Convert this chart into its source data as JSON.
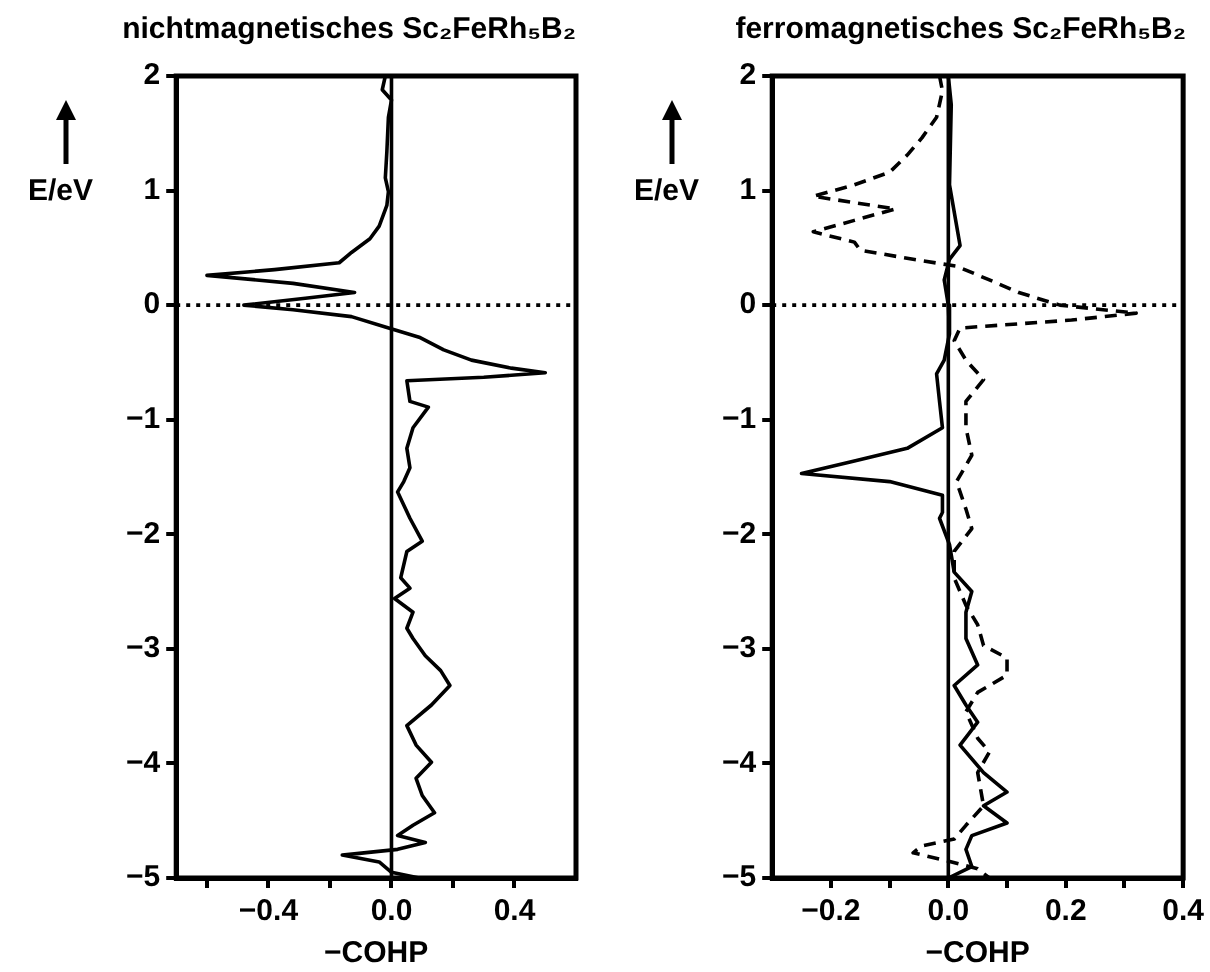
{
  "chart_data": [
    {
      "type": "line",
      "title": "nichtmagnetisches Sc₂FeRh₅B₂",
      "xlabel": "−COHP",
      "ylabel": "E/eV",
      "xlim": [
        -0.7,
        0.6
      ],
      "xticks": [
        {
          "value": -0.6,
          "label": null
        },
        {
          "value": -0.4,
          "label": "−0.4"
        },
        {
          "value": -0.2,
          "label": null
        },
        {
          "value": 0,
          "label": "0.0"
        },
        {
          "value": 0.2,
          "label": null
        },
        {
          "value": 0.4,
          "label": "0.4"
        }
      ],
      "ylim": [
        -5,
        2
      ],
      "yticks": [
        {
          "value": -5,
          "label": "−5"
        },
        {
          "value": -4,
          "label": "−4"
        },
        {
          "value": -3,
          "label": "−3"
        },
        {
          "value": -2,
          "label": "−2"
        },
        {
          "value": -1,
          "label": "−1"
        },
        0,
        1,
        2
      ],
      "grid": false,
      "legend": false,
      "marker": "none",
      "ref_lines": [
        {
          "axis": "y",
          "value": 0,
          "line_style": "dotted",
          "color": "#000000"
        },
        {
          "axis": "x",
          "value": 0,
          "line_style": "solid",
          "color": "#000000"
        }
      ],
      "series": [
        {
          "color": "#000000",
          "line_style": "solid",
          "x": [
            -0.02,
            -0.03,
            0.0,
            -0.01,
            -0.015,
            -0.02,
            -0.01,
            -0.015,
            -0.04,
            -0.07,
            -0.13,
            -0.17,
            -0.38,
            -0.6,
            -0.32,
            -0.12,
            -0.28,
            -0.48,
            -0.32,
            -0.13,
            -0.02,
            0.09,
            0.17,
            0.26,
            0.39,
            0.5,
            0.3,
            0.05,
            0.06,
            0.12,
            0.07,
            0.05,
            0.06,
            0.04,
            0.02,
            0.06,
            0.1,
            0.05,
            0.03,
            0.06,
            0.01,
            0.07,
            0.05,
            0.07,
            0.11,
            0.16,
            0.19,
            0.13,
            0.05,
            0.08,
            0.13,
            0.08,
            0.1,
            0.14,
            0.07,
            0.02,
            0.11,
            0.02,
            -0.16,
            -0.04,
            0.0,
            0.09
          ],
          "values": [
            2.0,
            1.88,
            1.79,
            1.64,
            1.34,
            1.11,
            0.99,
            0.87,
            0.69,
            0.58,
            0.46,
            0.37,
            0.31,
            0.26,
            0.19,
            0.11,
            0.06,
            0.0,
            -0.04,
            -0.1,
            -0.19,
            -0.28,
            -0.39,
            -0.48,
            -0.55,
            -0.59,
            -0.63,
            -0.66,
            -0.84,
            -0.89,
            -1.07,
            -1.25,
            -1.42,
            -1.54,
            -1.63,
            -1.86,
            -2.06,
            -2.15,
            -2.38,
            -2.47,
            -2.56,
            -2.68,
            -2.82,
            -2.91,
            -3.06,
            -3.19,
            -3.32,
            -3.49,
            -3.67,
            -3.84,
            -3.99,
            -4.13,
            -4.28,
            -4.43,
            -4.54,
            -4.63,
            -4.69,
            -4.75,
            -4.8,
            -4.86,
            -4.95,
            -5.0
          ]
        }
      ]
    },
    {
      "type": "line",
      "title": "ferromagnetisches Sc₂FeRh₅B₂",
      "xlabel": "−COHP",
      "ylabel": "E/eV",
      "xlim": [
        -0.3,
        0.4
      ],
      "xticks": [
        {
          "value": -0.2,
          "label": "−0.2"
        },
        {
          "value": -0.1,
          "label": null
        },
        {
          "value": 0,
          "label": "0.0"
        },
        {
          "value": 0.1,
          "label": null
        },
        0.2,
        {
          "value": 0.3,
          "label": null
        },
        0.4
      ],
      "ylim": [
        -5,
        2
      ],
      "yticks": [
        {
          "value": -5,
          "label": "−5"
        },
        {
          "value": -4,
          "label": "−4"
        },
        {
          "value": -3,
          "label": "−3"
        },
        {
          "value": -2,
          "label": "−2"
        },
        {
          "value": -1,
          "label": "−1"
        },
        0,
        1,
        2
      ],
      "grid": false,
      "legend": false,
      "marker": "none",
      "ref_lines": [
        {
          "axis": "y",
          "value": 0,
          "line_style": "dotted",
          "color": "#000000"
        },
        {
          "axis": "x",
          "value": 0,
          "line_style": "solid",
          "color": "#000000"
        }
      ],
      "series": [
        {
          "color": "#000000",
          "line_style": "dashed",
          "x": [
            -0.015,
            -0.01,
            -0.02,
            -0.045,
            -0.07,
            -0.1,
            -0.16,
            -0.23,
            -0.09,
            -0.16,
            -0.23,
            -0.16,
            -0.15,
            -0.06,
            0.014,
            0.07,
            0.12,
            0.19,
            0.32,
            0.21,
            0.02,
            0.01,
            0.03,
            0.06,
            0.03,
            0.03,
            0.04,
            0.014,
            0.03,
            0.04,
            0.01,
            0.01,
            0.03,
            0.05,
            0.06,
            0.1,
            0.1,
            0.05,
            0.03,
            0.05,
            0.07,
            0.05,
            0.06,
            0.03,
            0.01,
            -0.045,
            -0.06,
            -0.01,
            0.05,
            0.07
          ],
          "values": [
            2.0,
            1.87,
            1.64,
            1.46,
            1.31,
            1.16,
            1.05,
            0.95,
            0.84,
            0.74,
            0.64,
            0.55,
            0.48,
            0.4,
            0.34,
            0.22,
            0.11,
            0.0,
            -0.07,
            -0.13,
            -0.2,
            -0.31,
            -0.48,
            -0.65,
            -0.84,
            -1.07,
            -1.31,
            -1.54,
            -1.78,
            -1.95,
            -2.15,
            -2.38,
            -2.62,
            -2.79,
            -2.97,
            -3.08,
            -3.23,
            -3.38,
            -3.55,
            -3.78,
            -3.9,
            -4.08,
            -4.37,
            -4.54,
            -4.66,
            -4.72,
            -4.78,
            -4.84,
            -4.92,
            -5.0
          ]
        },
        {
          "color": "#000000",
          "line_style": "solid",
          "x": [
            0.0,
            0.005,
            0.002,
            0.02,
            0.002,
            -0.007,
            0.0,
            0.002,
            -0.007,
            -0.02,
            -0.015,
            -0.01,
            -0.07,
            -0.16,
            -0.25,
            -0.1,
            -0.01,
            -0.01,
            -0.015,
            0.002,
            0.01,
            0.04,
            0.03,
            0.03,
            0.05,
            0.01,
            0.03,
            0.05,
            0.02,
            0.06,
            0.1,
            0.06,
            0.1,
            0.04,
            0.03,
            0.04,
            0.0
          ],
          "values": [
            2.0,
            1.75,
            1.05,
            0.52,
            0.4,
            0.22,
            0.0,
            -0.25,
            -0.48,
            -0.6,
            -0.84,
            -1.07,
            -1.25,
            -1.36,
            -1.47,
            -1.54,
            -1.66,
            -1.81,
            -1.86,
            -2.09,
            -2.33,
            -2.5,
            -2.68,
            -2.91,
            -3.14,
            -3.32,
            -3.49,
            -3.64,
            -3.84,
            -4.08,
            -4.25,
            -4.37,
            -4.52,
            -4.63,
            -4.75,
            -4.9,
            -5.0
          ]
        }
      ]
    }
  ]
}
